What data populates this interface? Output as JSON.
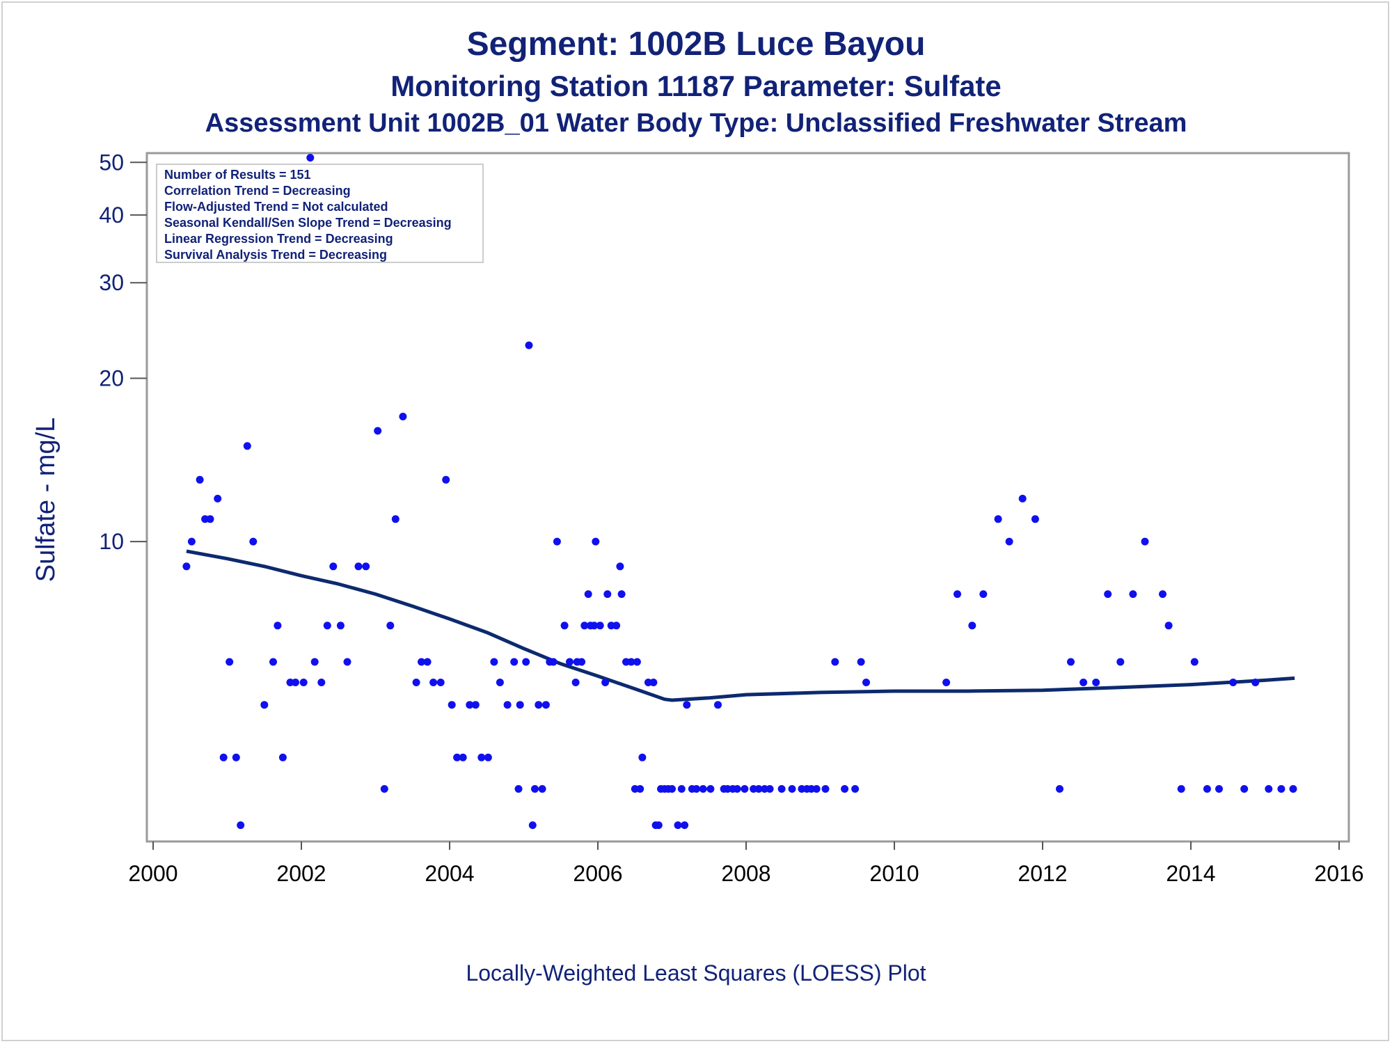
{
  "titles": {
    "line1": "Segment: 1002B  Luce Bayou",
    "line2": "Monitoring Station 11187 Parameter: Sulfate",
    "line3": "Assessment Unit 1002B_01   Water Body Type: Unclassified Freshwater Stream"
  },
  "footer": "Locally-Weighted Least Squares (LOESS) Plot",
  "inset": [
    "Number of Results = 151",
    "Correlation Trend = Decreasing",
    "Flow-Adjusted Trend = Not calculated",
    "Seasonal Kendall/Sen Slope Trend = Decreasing",
    "Linear Regression Trend = Decreasing",
    "Survival Analysis Trend = Decreasing"
  ],
  "chart_data": {
    "type": "scatter",
    "ylabel": "Sulfate - mg/L",
    "xlabel": "",
    "xlim": [
      2000,
      2016
    ],
    "ylim": [
      2.8,
      52
    ],
    "yscale": "log",
    "x_ticks": [
      2000,
      2002,
      2004,
      2006,
      2008,
      2010,
      2012,
      2014,
      2016
    ],
    "y_ticks": [
      10,
      20,
      30,
      40,
      50
    ],
    "grid": false,
    "colors": {
      "points": "#1010ee",
      "loess": "#0c2a6e",
      "text": "#112277"
    },
    "series": [
      {
        "type": "scatter",
        "points": [
          [
            2000.45,
            9
          ],
          [
            2000.52,
            10
          ],
          [
            2000.63,
            13
          ],
          [
            2000.7,
            11
          ],
          [
            2000.77,
            11
          ],
          [
            2000.87,
            12
          ],
          [
            2000.95,
            4
          ],
          [
            2001.03,
            6
          ],
          [
            2001.12,
            4
          ],
          [
            2001.18,
            3
          ],
          [
            2001.27,
            15
          ],
          [
            2001.35,
            10
          ],
          [
            2001.5,
            5
          ],
          [
            2001.62,
            6
          ],
          [
            2001.68,
            7
          ],
          [
            2001.75,
            4
          ],
          [
            2001.85,
            5.5
          ],
          [
            2001.92,
            5.5
          ],
          [
            2002.03,
            5.5
          ],
          [
            2002.12,
            51
          ],
          [
            2002.18,
            6
          ],
          [
            2002.27,
            5.5
          ],
          [
            2002.35,
            7
          ],
          [
            2002.43,
            9
          ],
          [
            2002.53,
            7
          ],
          [
            2002.62,
            6
          ],
          [
            2002.77,
            9
          ],
          [
            2002.87,
            9
          ],
          [
            2003.03,
            16
          ],
          [
            2003.12,
            3.5
          ],
          [
            2003.2,
            7
          ],
          [
            2003.27,
            11
          ],
          [
            2003.37,
            17
          ],
          [
            2003.55,
            5.5
          ],
          [
            2003.62,
            6
          ],
          [
            2003.7,
            6
          ],
          [
            2003.78,
            5.5
          ],
          [
            2003.88,
            5.5
          ],
          [
            2003.95,
            13
          ],
          [
            2004.03,
            5
          ],
          [
            2004.1,
            4
          ],
          [
            2004.18,
            4
          ],
          [
            2004.27,
            5
          ],
          [
            2004.35,
            5
          ],
          [
            2004.43,
            4
          ],
          [
            2004.52,
            4
          ],
          [
            2004.6,
            6
          ],
          [
            2004.68,
            5.5
          ],
          [
            2004.78,
            5
          ],
          [
            2004.87,
            6
          ],
          [
            2004.93,
            3.5
          ],
          [
            2004.95,
            5
          ],
          [
            2005.03,
            6
          ],
          [
            2005.07,
            23
          ],
          [
            2005.12,
            3
          ],
          [
            2005.15,
            3.5
          ],
          [
            2005.2,
            5
          ],
          [
            2005.25,
            3.5
          ],
          [
            2005.3,
            5
          ],
          [
            2005.35,
            6
          ],
          [
            2005.4,
            6
          ],
          [
            2005.45,
            10
          ],
          [
            2005.55,
            7
          ],
          [
            2005.62,
            6
          ],
          [
            2005.7,
            5.5
          ],
          [
            2005.72,
            6
          ],
          [
            2005.78,
            6
          ],
          [
            2005.82,
            7
          ],
          [
            2005.87,
            8
          ],
          [
            2005.9,
            7
          ],
          [
            2005.95,
            7
          ],
          [
            2005.97,
            10
          ],
          [
            2006.03,
            7
          ],
          [
            2006.1,
            5.5
          ],
          [
            2006.13,
            8
          ],
          [
            2006.18,
            7
          ],
          [
            2006.25,
            7
          ],
          [
            2006.3,
            9
          ],
          [
            2006.32,
            8
          ],
          [
            2006.38,
            6
          ],
          [
            2006.45,
            6
          ],
          [
            2006.5,
            3.5
          ],
          [
            2006.53,
            6
          ],
          [
            2006.57,
            3.5
          ],
          [
            2006.6,
            4
          ],
          [
            2006.68,
            5.5
          ],
          [
            2006.75,
            5.5
          ],
          [
            2006.78,
            3
          ],
          [
            2006.82,
            3
          ],
          [
            2006.85,
            3.5
          ],
          [
            2006.9,
            3.5
          ],
          [
            2006.95,
            3.5
          ],
          [
            2007.0,
            3.5
          ],
          [
            2007.08,
            3
          ],
          [
            2007.13,
            3.5
          ],
          [
            2007.17,
            3
          ],
          [
            2007.2,
            5
          ],
          [
            2007.27,
            3.5
          ],
          [
            2007.33,
            3.5
          ],
          [
            2007.42,
            3.5
          ],
          [
            2007.52,
            3.5
          ],
          [
            2007.62,
            5
          ],
          [
            2007.7,
            3.5
          ],
          [
            2007.75,
            3.5
          ],
          [
            2007.82,
            3.5
          ],
          [
            2007.88,
            3.5
          ],
          [
            2007.98,
            3.5
          ],
          [
            2008.1,
            3.5
          ],
          [
            2008.17,
            3.5
          ],
          [
            2008.25,
            3.5
          ],
          [
            2008.32,
            3.5
          ],
          [
            2008.48,
            3.5
          ],
          [
            2008.62,
            3.5
          ],
          [
            2008.75,
            3.5
          ],
          [
            2008.82,
            3.5
          ],
          [
            2008.88,
            3.5
          ],
          [
            2008.95,
            3.5
          ],
          [
            2009.07,
            3.5
          ],
          [
            2009.2,
            6
          ],
          [
            2009.33,
            3.5
          ],
          [
            2009.47,
            3.5
          ],
          [
            2009.55,
            6
          ],
          [
            2009.62,
            5.5
          ],
          [
            2010.7,
            5.5
          ],
          [
            2010.85,
            8
          ],
          [
            2011.05,
            7
          ],
          [
            2011.2,
            8
          ],
          [
            2011.4,
            11
          ],
          [
            2011.55,
            10
          ],
          [
            2011.73,
            12
          ],
          [
            2011.9,
            11
          ],
          [
            2012.23,
            3.5
          ],
          [
            2012.38,
            6
          ],
          [
            2012.55,
            5.5
          ],
          [
            2012.72,
            5.5
          ],
          [
            2012.88,
            8
          ],
          [
            2013.05,
            6
          ],
          [
            2013.22,
            8
          ],
          [
            2013.38,
            10
          ],
          [
            2013.62,
            8
          ],
          [
            2013.7,
            7
          ],
          [
            2013.87,
            3.5
          ],
          [
            2014.05,
            6
          ],
          [
            2014.22,
            3.5
          ],
          [
            2014.38,
            3.5
          ],
          [
            2014.57,
            5.5
          ],
          [
            2014.72,
            3.5
          ],
          [
            2014.87,
            5.5
          ],
          [
            2015.05,
            3.5
          ],
          [
            2015.22,
            3.5
          ],
          [
            2015.38,
            3.5
          ]
        ]
      },
      {
        "type": "line",
        "points": [
          [
            2000.45,
            9.6
          ],
          [
            2001.0,
            9.3
          ],
          [
            2001.5,
            9.0
          ],
          [
            2002.0,
            8.65
          ],
          [
            2002.5,
            8.35
          ],
          [
            2003.0,
            8.0
          ],
          [
            2003.5,
            7.6
          ],
          [
            2004.0,
            7.2
          ],
          [
            2004.5,
            6.8
          ],
          [
            2005.0,
            6.35
          ],
          [
            2005.5,
            5.95
          ],
          [
            2006.0,
            5.65
          ],
          [
            2006.5,
            5.35
          ],
          [
            2006.9,
            5.12
          ],
          [
            2007.0,
            5.1
          ],
          [
            2007.5,
            5.15
          ],
          [
            2008.0,
            5.22
          ],
          [
            2009.0,
            5.27
          ],
          [
            2010.0,
            5.3
          ],
          [
            2011.0,
            5.3
          ],
          [
            2012.0,
            5.32
          ],
          [
            2013.0,
            5.38
          ],
          [
            2014.0,
            5.45
          ],
          [
            2015.0,
            5.55
          ],
          [
            2015.4,
            5.6
          ]
        ]
      }
    ]
  }
}
